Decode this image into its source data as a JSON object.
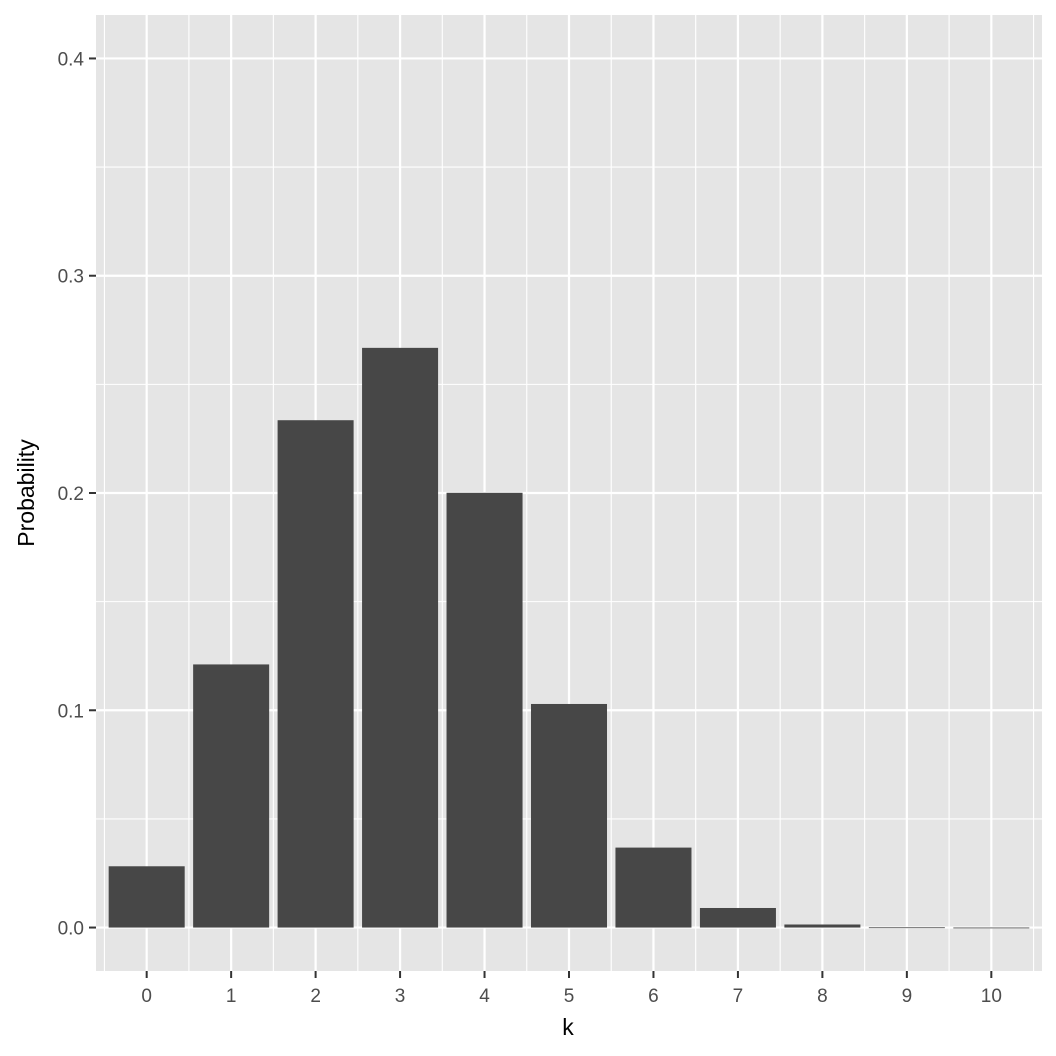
{
  "chart_data": {
    "type": "bar",
    "title": "",
    "xlabel": "k",
    "ylabel": "Probability",
    "categories": [
      "0",
      "1",
      "2",
      "3",
      "4",
      "5",
      "6",
      "7",
      "8",
      "9",
      "10"
    ],
    "values": [
      0.0282,
      0.1211,
      0.2335,
      0.2668,
      0.2001,
      0.1029,
      0.0368,
      0.009,
      0.0014,
      0.0001,
      5.9e-06
    ],
    "ylim": [
      -0.02,
      0.42
    ],
    "yticks": [
      0.0,
      0.1,
      0.2,
      0.3,
      0.4
    ],
    "ytick_labels": [
      "0.0",
      "0.1",
      "0.2",
      "0.3",
      "0.4"
    ],
    "grid": true,
    "colors": {
      "panel": "#e5e5e5",
      "grid": "#ffffff",
      "bar": "#474747",
      "tick_text": "#4d4d4d",
      "tick_mark": "#333333"
    }
  }
}
